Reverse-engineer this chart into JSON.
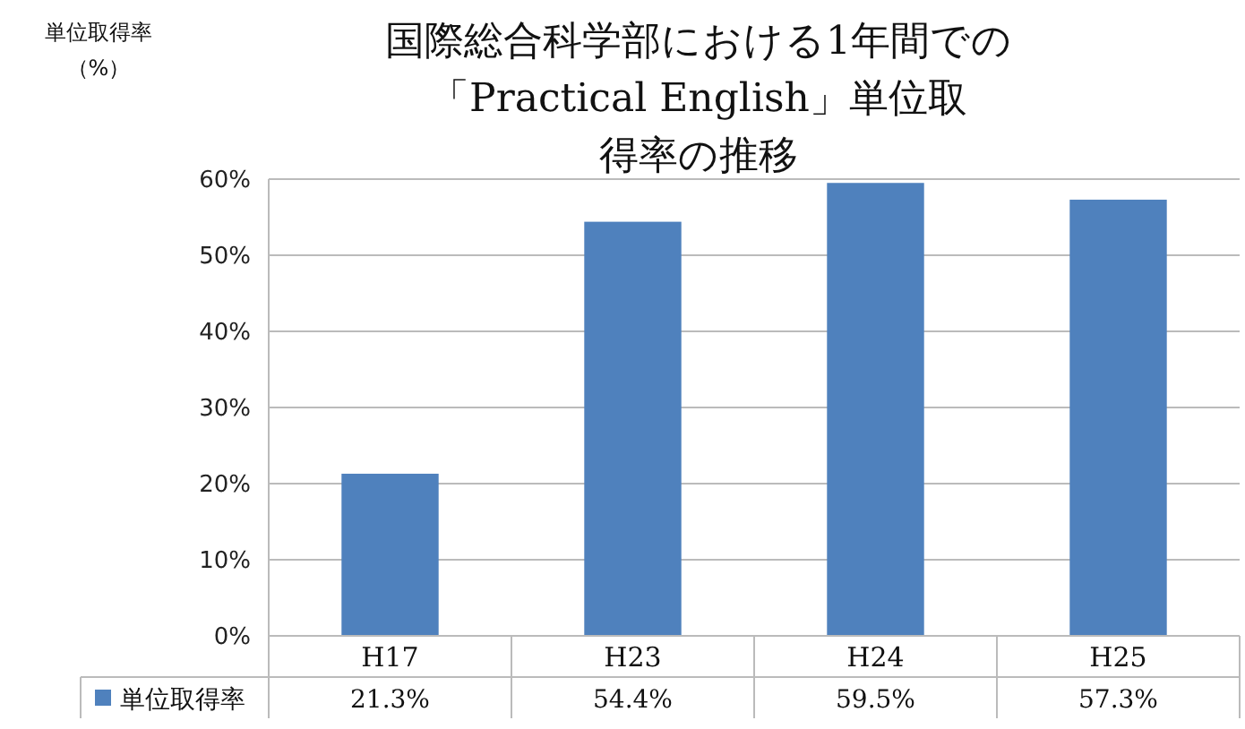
{
  "chart_data": {
    "type": "bar",
    "title": "国際総合科学部における1年間での「Practical English」単位取得率の推移",
    "ylabel": "単位取得率（%）",
    "categories": [
      "H17",
      "H23",
      "H24",
      "H25"
    ],
    "series": [
      {
        "name": "単位取得率",
        "color": "#4f81bd",
        "values": [
          21.3,
          54.4,
          59.5,
          57.3
        ],
        "value_labels": [
          "21.3%",
          "54.4%",
          "59.5%",
          "57.3%"
        ]
      }
    ],
    "ylim": [
      0,
      60
    ],
    "yticks": [
      {
        "value": 0,
        "label": "0%"
      },
      {
        "value": 10,
        "label": "10%"
      },
      {
        "value": 20,
        "label": "20%"
      },
      {
        "value": 30,
        "label": "30%"
      },
      {
        "value": 40,
        "label": "40%"
      },
      {
        "value": 50,
        "label": "50%"
      },
      {
        "value": 60,
        "label": "60%"
      }
    ],
    "grid": "y",
    "legend": "bottom left"
  }
}
